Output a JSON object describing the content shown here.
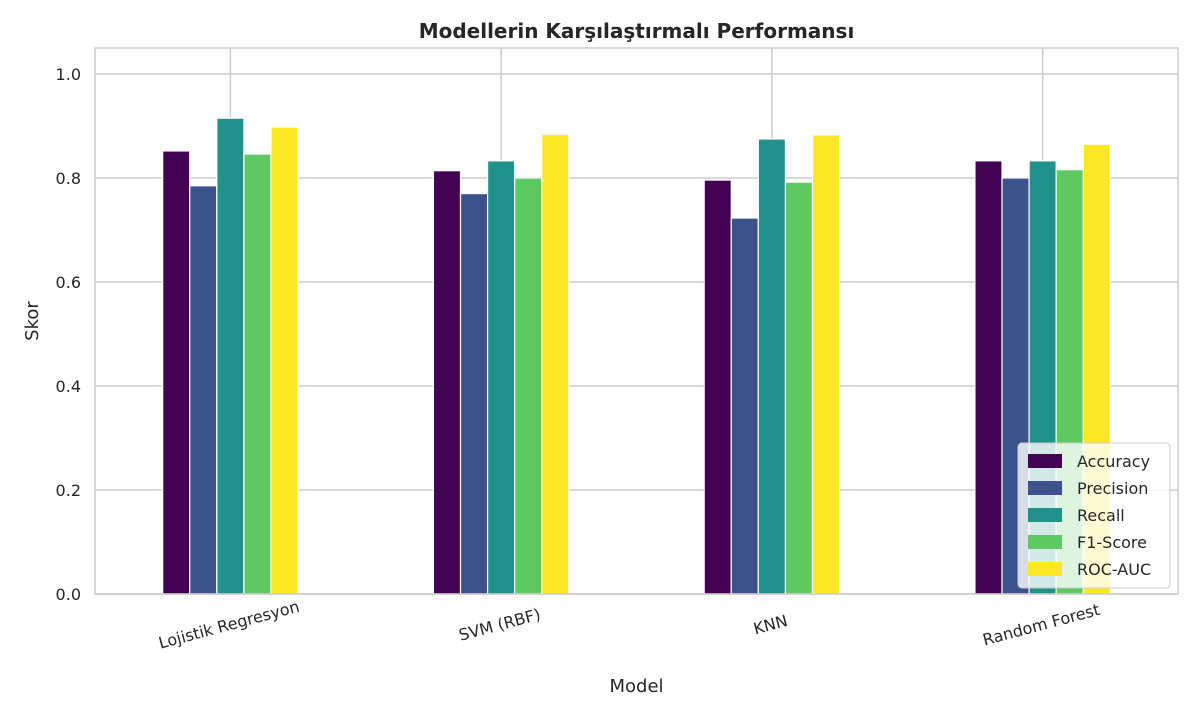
{
  "chart_data": {
    "type": "bar",
    "title": "Modellerin Karşılaştırmalı Performansı",
    "xlabel": "Model",
    "ylabel": "Skor",
    "categories": [
      "Lojistik Regresyon",
      "SVM (RBF)",
      "KNN",
      "Random Forest"
    ],
    "series": [
      {
        "name": "Accuracy",
        "color": "#440154",
        "values": [
          0.852,
          0.814,
          0.796,
          0.833
        ]
      },
      {
        "name": "Precision",
        "color": "#3b528b",
        "values": [
          0.785,
          0.77,
          0.723,
          0.8
        ]
      },
      {
        "name": "Recall",
        "color": "#21918c",
        "values": [
          0.915,
          0.833,
          0.875,
          0.833
        ]
      },
      {
        "name": "F1-Score",
        "color": "#5ec962",
        "values": [
          0.846,
          0.8,
          0.792,
          0.816
        ]
      },
      {
        "name": "ROC-AUC",
        "color": "#fde725",
        "values": [
          0.898,
          0.884,
          0.883,
          0.865
        ]
      }
    ],
    "ylim": [
      0,
      1.05
    ],
    "yticks": [
      "0.0",
      "0.2",
      "0.4",
      "0.6",
      "0.8",
      "1.0"
    ],
    "grid": true,
    "legend_position": "lower-right"
  }
}
